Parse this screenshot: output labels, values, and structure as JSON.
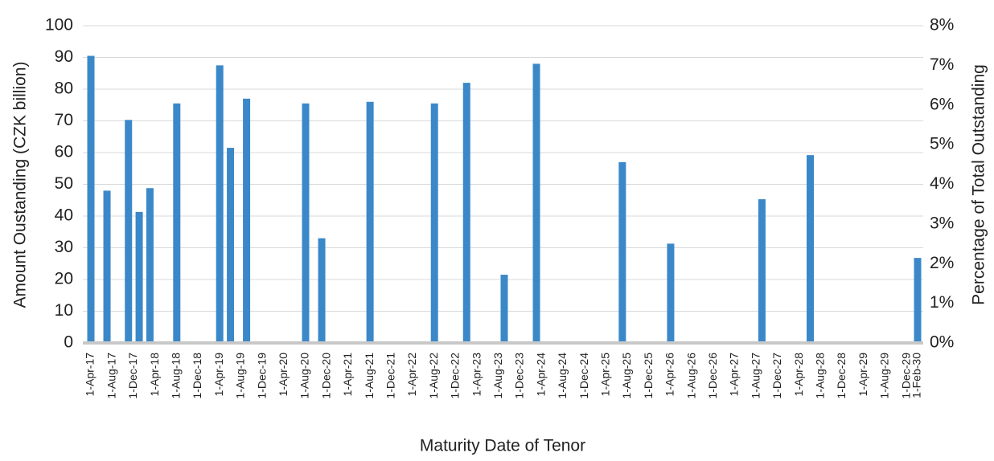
{
  "chart_data": {
    "type": "bar",
    "x_label": "Maturity Date of Tenor",
    "y_label": "Amount Oustanding (CZK billion)",
    "y2_label": "Percentage of Total Outstanding",
    "color": "#3b88c9",
    "x": [
      "1-Apr-17",
      "1-Jul-17",
      "1-Nov-17",
      "1-Jan-18",
      "1-Mar-18",
      "1-Aug-18",
      "1-Apr-19",
      "1-Jun-19",
      "1-Sep-19",
      "1-Aug-20",
      "1-Nov-20",
      "1-Aug-21",
      "1-Aug-22",
      "1-Feb-23",
      "1-Sep-23",
      "1-Mar-24",
      "1-Jul-25",
      "1-Apr-26",
      "1-Sep-27",
      "1-Jun-28",
      "1-Feb-30"
    ],
    "values": [
      90.5,
      48,
      70.3,
      41.3,
      48.8,
      75.5,
      87.5,
      61.5,
      77,
      75.5,
      33,
      76,
      75.5,
      82,
      21.5,
      88,
      57,
      31.3,
      45.3,
      59.2,
      26.8
    ],
    "xticks": [
      "1-Apr-17",
      "1-Aug-17",
      "1-Dec-17",
      "1-Apr-18",
      "1-Aug-18",
      "1-Dec-18",
      "1-Apr-19",
      "1-Aug-19",
      "1-Dec-19",
      "1-Apr-20",
      "1-Aug-20",
      "1-Dec-20",
      "1-Apr-21",
      "1-Aug-21",
      "1-Dec-21",
      "1-Apr-22",
      "1-Aug-22",
      "1-Dec-22",
      "1-Apr-23",
      "1-Aug-23",
      "1-Dec-23",
      "1-Apr-24",
      "1-Aug-24",
      "1-Dec-24",
      "1-Apr-25",
      "1-Aug-25",
      "1-Dec-25",
      "1-Apr-26",
      "1-Aug-26",
      "1-Dec-26",
      "1-Apr-27",
      "1-Aug-27",
      "1-Dec-27",
      "1-Apr-28",
      "1-Aug-28",
      "1-Dec-28",
      "1-Apr-29",
      "1-Aug-29",
      "1-Dec-29",
      "1-Feb-30"
    ],
    "ylim": [
      0,
      100
    ],
    "yticks": [
      0,
      10,
      20,
      30,
      40,
      50,
      60,
      70,
      80,
      90,
      100
    ],
    "y2lim": [
      0,
      8
    ],
    "y2ticks": [
      {
        "value": 0,
        "label": "0%"
      },
      {
        "value": 1,
        "label": "1%"
      },
      {
        "value": 2,
        "label": "2%"
      },
      {
        "value": 3,
        "label": "3%"
      },
      {
        "value": 4,
        "label": "4%"
      },
      {
        "value": 5,
        "label": "5%"
      },
      {
        "value": 6,
        "label": "6%"
      },
      {
        "value": 7,
        "label": "7%"
      },
      {
        "value": 8,
        "label": "8%"
      }
    ],
    "grid": true
  }
}
